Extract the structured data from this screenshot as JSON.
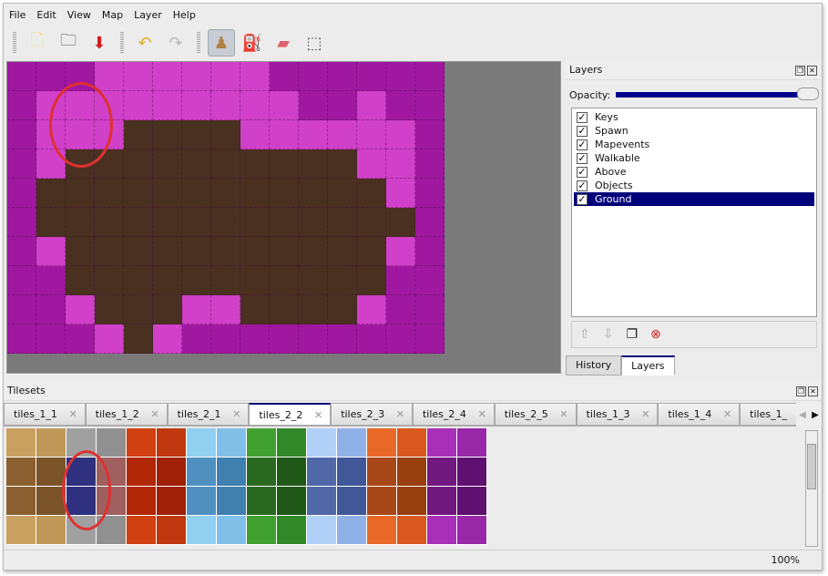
{
  "menu": [
    "File",
    "Edit",
    "View",
    "Map",
    "Layer",
    "Help"
  ],
  "toolbar": [
    {
      "icon": "new-file-icon",
      "glyph": "🗋"
    },
    {
      "icon": "open-folder-icon",
      "glyph": "🗀"
    },
    {
      "icon": "save-icon",
      "glyph": "⬇"
    },
    {
      "icon": "undo-icon",
      "glyph": "↶"
    },
    {
      "icon": "redo-icon",
      "glyph": "↷"
    },
    {
      "icon": "stamp-brush-icon",
      "glyph": "♟",
      "active": true
    },
    {
      "icon": "bucket-fill-icon",
      "glyph": "⛽"
    },
    {
      "icon": "eraser-icon",
      "glyph": "▰"
    },
    {
      "icon": "rectangle-select-icon",
      "glyph": "⬚"
    }
  ],
  "map": {
    "colors": {
      "P": "#a018a0",
      "L": "#d040c8",
      "D": "#4a3020"
    },
    "rows": [
      "PPPLLLLLLPPPPPP",
      "PLLLLLLLLLPPLPP",
      "PLLLDDDDLLLLLLP",
      "PLDDDDDDDDDDLLP",
      "PDDDDDDDDDDDDLP",
      "PDDDDDDDDDDDDDP",
      "PLDDDDDDDDDDDLP",
      "PPDDDDDDDDDDDPP",
      "PPLDDDLLDDDDLPP",
      "PPPLDLPPPPPPPPP"
    ]
  },
  "layers": {
    "title": "Layers",
    "opacity_label": "Opacity:",
    "opacity": 1.0,
    "items": [
      {
        "name": "Keys",
        "visible": true
      },
      {
        "name": "Spawn",
        "visible": true
      },
      {
        "name": "Mapevents",
        "visible": true
      },
      {
        "name": "Walkable",
        "visible": true
      },
      {
        "name": "Above",
        "visible": true
      },
      {
        "name": "Objects",
        "visible": true
      },
      {
        "name": "Ground",
        "visible": true,
        "selected": true
      }
    ],
    "buttons": [
      "raise-layer-icon",
      "lower-layer-icon",
      "duplicate-layer-icon",
      "delete-layer-icon"
    ],
    "tabs": [
      "History",
      "Layers"
    ],
    "active_tab": "Layers"
  },
  "tilesets": {
    "title": "Tilesets",
    "tabs": [
      "tiles_1_1",
      "tiles_1_2",
      "tiles_2_1",
      "tiles_2_2",
      "tiles_2_3",
      "tiles_2_4",
      "tiles_2_5",
      "tiles_1_3",
      "tiles_1_4",
      "tiles_1_"
    ],
    "active": "tiles_2_2",
    "palette": [
      "#b89050",
      "#a07840",
      "#909090",
      "#7a7a7a",
      "#c03008",
      "#a82808",
      "#80c8e8",
      "#60a8d0",
      "#388828",
      "#2a6a20",
      "#a0c0f0",
      "#6080c0",
      "#e06020",
      "#c04818",
      "#9020a0",
      "#7a1890"
    ],
    "row_colors": [
      [
        "#c8a060",
        "#c09858",
        "#a0a0a0",
        "#909090",
        "#d04010",
        "#c03810",
        "#90d0f0",
        "#80c0e8",
        "#40a030",
        "#308828",
        "#b0d0f8",
        "#90b0e8",
        "#e86828",
        "#d85820",
        "#a830b8",
        "#9828a8"
      ],
      [
        "#8a6030",
        "#7a5428",
        "#303080",
        "#a06060",
        "#b02808",
        "#a02008",
        "#5090c0",
        "#4080b0",
        "#2a6a20",
        "#205818",
        "#5068a8",
        "#405898",
        "#a84818",
        "#984010",
        "#701880",
        "#601070"
      ],
      [
        "#8a6030",
        "#7a5428",
        "#303080",
        "#a06060",
        "#b02808",
        "#a02008",
        "#5090c0",
        "#4080b0",
        "#2a6a20",
        "#205818",
        "#5068a8",
        "#405898",
        "#a84818",
        "#984010",
        "#701880",
        "#601070"
      ],
      [
        "#c8a060",
        "#c09858",
        "#a0a0a0",
        "#909090",
        "#d04010",
        "#c03810",
        "#90d0f0",
        "#80c0e8",
        "#40a030",
        "#308828",
        "#b0d0f8",
        "#90b0e8",
        "#e86828",
        "#d85820",
        "#a830b8",
        "#9828a8"
      ]
    ]
  },
  "status": {
    "zoom": "100%"
  }
}
